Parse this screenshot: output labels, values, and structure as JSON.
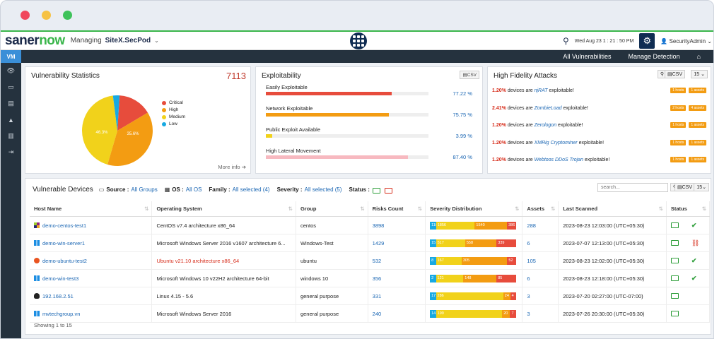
{
  "window": {
    "dots": [
      "#f0465d",
      "#f6c244",
      "#3ec25a"
    ]
  },
  "header": {
    "logo_a": "saner",
    "logo_b": "now",
    "managing_label": "Managing",
    "site": "SiteX.SecPod",
    "datetime": "Wed Aug 23  1 : 21 : 50 PM",
    "user": "SecurityAdmin"
  },
  "sidebar": {
    "active": "VM"
  },
  "nav": {
    "items": [
      "All Vulnerabilities",
      "Manage Detection"
    ]
  },
  "stats": {
    "title": "Vulnerability Statistics",
    "total": "7113",
    "legend": [
      "Critical",
      "High",
      "Medium",
      "Low"
    ],
    "colors": [
      "#e74c3c",
      "#f39c12",
      "#f1d21b",
      "#17a9e2"
    ],
    "slice_labels": [
      "35.6%",
      "46.3%"
    ],
    "more_info": "More info"
  },
  "exploitability": {
    "title": "Exploitability",
    "csv": "CSV",
    "rows": [
      {
        "label": "Easily Exploitable",
        "pct": "77.22",
        "value": 77.22,
        "color": "#e74c3c"
      },
      {
        "label": "Network Exploitable",
        "pct": "75.75",
        "value": 75.75,
        "color": "#f39c12"
      },
      {
        "label": "Public Exploit Available",
        "pct": "3.99",
        "value": 3.99,
        "color": "#f1d21b"
      },
      {
        "label": "High Lateral Movement",
        "pct": "87.40",
        "value": 87.4,
        "color": "#f7b9c0"
      }
    ],
    "pct_unit": "%"
  },
  "hfa": {
    "title": "High Fidelity Attacks",
    "csv": "CSV",
    "page_size": "15",
    "devices_are": "devices are",
    "exploitable": "exploitable!",
    "rows": [
      {
        "pct": "1.20%",
        "malware": "njRAT",
        "hosts": "1 hosts",
        "assets": "1 assets"
      },
      {
        "pct": "2.41%",
        "malware": "ZombieLoad",
        "hosts": "2 hosts",
        "assets": "4 assets"
      },
      {
        "pct": "1.20%",
        "malware": "Zerologon",
        "hosts": "1 hosts",
        "assets": "1 assets"
      },
      {
        "pct": "1.20%",
        "malware": "XMRig Cryptominer",
        "hosts": "1 hosts",
        "assets": "1 assets"
      },
      {
        "pct": "1.20%",
        "malware": "Webtoos DDoS Trojan",
        "hosts": "1 hosts",
        "assets": "1 assets"
      }
    ]
  },
  "devices": {
    "title": "Vulnerable Devices",
    "source_label": "Source :",
    "source_value": "All Groups",
    "os_label": "OS :",
    "os_value": "All OS",
    "family_label": "Family :",
    "family_value": "All selected (4)",
    "severity_label": "Severity :",
    "severity_value": "All selected (5)",
    "status_label": "Status :",
    "search_placeholder": "search...",
    "csv": "CSV",
    "page_size": "15",
    "columns": [
      "Host Name",
      "Operating System",
      "Group",
      "Risks Count",
      "Severity Distribution",
      "Assets",
      "Last Scanned",
      "Status"
    ],
    "rows": [
      {
        "host": "demo-centos-test1",
        "os": "CentOS v7.4 architecture x86_64",
        "os_red": false,
        "group": "centos",
        "risks": "3898",
        "sev": [
          116,
          1856,
          1540,
          386
        ],
        "assets": "288",
        "scanned": "2023-08-23 12:03:00 (UTC+05:30)",
        "status": "check",
        "icon": "centos-icon"
      },
      {
        "host": "demo-win-server1",
        "os": "Microsoft Windows Server 2016 v1607 architecture 6...",
        "os_red": false,
        "group": "Windows-Test",
        "risks": "1429",
        "sev": [
          15,
          517,
          558,
          339
        ],
        "assets": "6",
        "scanned": "2023-07-07 12:13:00 (UTC+05:30)",
        "status": "broken",
        "icon": "windows-icon"
      },
      {
        "host": "demo-ubuntu-test2",
        "os": "Ubuntu v21.10 architecture x86_64",
        "os_red": true,
        "group": "ubuntu",
        "risks": "532",
        "sev": [
          8,
          167,
          305,
          52
        ],
        "assets": "105",
        "scanned": "2023-08-23 12:02:00 (UTC+05:30)",
        "status": "check",
        "icon": "ubuntu-icon"
      },
      {
        "host": "demo-win-test3",
        "os": "Microsoft Windows 10 v22H2 architecture 64-bit",
        "os_red": false,
        "group": "windows 10",
        "risks": "356",
        "sev": [
          2,
          121,
          148,
          85
        ],
        "assets": "6",
        "scanned": "2023-08-23 12:18:00 (UTC+05:30)",
        "status": "check",
        "icon": "windows-icon"
      },
      {
        "host": "192.168.2.51",
        "os": "Linux 4.15 - 5.6",
        "os_red": false,
        "group": "general purpose",
        "risks": "331",
        "sev": [
          17,
          286,
          24,
          4
        ],
        "assets": "3",
        "scanned": "2023-07-20 02:27:00 (UTC-07:00)",
        "status": "none",
        "icon": "linux-icon"
      },
      {
        "host": "mvtechgroup.vn",
        "os": "Microsoft Windows Server 2016",
        "os_red": false,
        "group": "general purpose",
        "risks": "240",
        "sev": [
          14,
          199,
          20,
          7
        ],
        "assets": "3",
        "scanned": "2023-07-26 20:30:00 (UTC+05:30)",
        "status": "none",
        "icon": "windows-icon"
      }
    ],
    "showing": "Showing 1 to 15"
  }
}
